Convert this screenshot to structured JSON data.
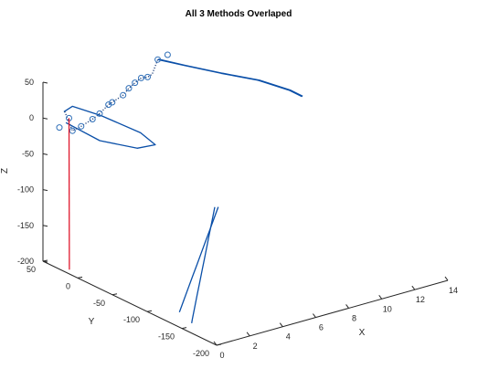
{
  "chart_data": {
    "type": "line",
    "projection": "3d",
    "title": "All 3 Methods Overlaped",
    "xlabel": "X",
    "ylabel": "Y",
    "zlabel": "Z",
    "xlim": [
      0,
      14
    ],
    "ylim": [
      -200,
      50
    ],
    "zlim": [
      -200,
      50
    ],
    "x_ticks": [
      "0",
      "2",
      "4",
      "6",
      "8",
      "10",
      "12",
      "14"
    ],
    "y_ticks": [
      "50",
      "0",
      "-50",
      "-100",
      "-150",
      "-200"
    ],
    "z_ticks": [
      "50",
      "0",
      "-50",
      "-100",
      "-150",
      "-200"
    ],
    "grid": false,
    "colors": {
      "trajectory": "#0a4fa8",
      "dotted": "#1f3f7a",
      "markers": "#2f6fb8",
      "vertical": "#e0182d"
    },
    "series": [
      {
        "style": "solid",
        "points": [
          [
            0.1,
            -200.0,
            -7.55
          ],
          [
            0.96,
            -173.33,
            -41.96
          ],
          [
            1.82,
            -146.67,
            -76.37
          ],
          [
            2.68,
            -120.0,
            -110.78
          ],
          [
            3.54,
            -93.33,
            -145.19
          ],
          [
            4.4,
            -66.67,
            -179.6
          ],
          [
            5.26,
            -40.0,
            -214.01
          ],
          [
            6.12,
            -13.33,
            -248.42
          ],
          [
            6.98,
            13.33,
            -282.83
          ],
          [
            7.84,
            40.0,
            -317.24
          ]
        ]
      },
      {
        "style": "solid",
        "points": [
          [
            0.1,
            -195.0,
            -10.0
          ],
          [
            1.0,
            -170.0,
            -45.0
          ],
          [
            1.9,
            -145.0,
            -80.0
          ],
          [
            2.8,
            -120.0,
            -115.0
          ],
          [
            3.7,
            -95.0,
            -150.0
          ],
          [
            4.6,
            -70.0,
            -185.0
          ],
          [
            5.5,
            -45.0,
            -220.0
          ],
          [
            6.4,
            -20.0,
            -255.0
          ],
          [
            7.3,
            5.0,
            -290.0
          ],
          [
            8.2,
            30.0,
            -325.0
          ],
          [
            8.5,
            38.0,
            -336.0
          ]
        ]
      },
      {
        "style": "solid",
        "points": [
          [
            0.0,
            17.0,
            9.0
          ],
          [
            0.5,
            -20.0,
            -2.0
          ],
          [
            1.5,
            -50.0,
            -5.0
          ],
          [
            2.3,
            -57.0,
            -2.0
          ],
          [
            2.0,
            -43.0,
            10.0
          ],
          [
            1.0,
            -10.0,
            25.0
          ],
          [
            0.35,
            16.0,
            30.0
          ],
          [
            0.05,
            21.0,
            22.0
          ]
        ]
      },
      {
        "style": "solid",
        "points": [
          [
            7.5,
            63.0,
            27.0
          ],
          [
            8.6,
            52.0,
            17.0
          ],
          [
            10.2,
            36.0,
            3.0
          ],
          [
            11.8,
            21.0,
            -10.0
          ],
          [
            13.0,
            5.0,
            -24.0
          ],
          [
            13.5,
            -2.0,
            -33.0
          ]
        ]
      },
      {
        "style": "solid",
        "points": [
          [
            7.5,
            62.0,
            28.0
          ],
          [
            8.6,
            50.0,
            18.0
          ],
          [
            10.2,
            34.0,
            4.0
          ],
          [
            11.8,
            19.0,
            -9.0
          ],
          [
            13.0,
            3.0,
            -23.0
          ],
          [
            13.5,
            -3.0,
            -32.0
          ]
        ]
      },
      {
        "style": "dotted",
        "points": [
          [
            0.1,
            21.0,
            22.0
          ],
          [
            0.8,
            26.5,
            -12.0
          ],
          [
            1.6,
            33.0,
            -14.0
          ],
          [
            2.2,
            31.0,
            -7.0
          ],
          [
            2.8,
            35.0,
            -5.0
          ],
          [
            3.4,
            36.5,
            3.0
          ],
          [
            3.9,
            43.0,
            0.0
          ],
          [
            4.6,
            44.0,
            5.0
          ],
          [
            5.2,
            50.0,
            8.0
          ],
          [
            5.7,
            53.0,
            11.0
          ],
          [
            6.2,
            56.0,
            13.0
          ],
          [
            6.8,
            61.0,
            8.0
          ],
          [
            7.2,
            64.0,
            8.0
          ],
          [
            7.5,
            63.0,
            27.0
          ]
        ]
      },
      {
        "style": "markers",
        "points": [
          [
            -0.33,
            18.5,
            3.6
          ],
          [
            0.36,
            21.0,
            11.0
          ],
          [
            0.8,
            26.5,
            -12.0
          ],
          [
            1.6,
            33.0,
            -14.0
          ],
          [
            2.2,
            31.0,
            -7.0
          ],
          [
            2.8,
            35.0,
            -5.0
          ],
          [
            3.4,
            36.5,
            3.0
          ],
          [
            3.9,
            43.0,
            0.0
          ],
          [
            4.6,
            44.0,
            5.0
          ],
          [
            5.2,
            50.0,
            8.0
          ],
          [
            5.7,
            53.0,
            11.0
          ],
          [
            6.2,
            56.0,
            13.0
          ],
          [
            6.8,
            61.0,
            8.0
          ],
          [
            7.5,
            63.0,
            27.0
          ],
          [
            8.2,
            65.5,
            28.0
          ]
        ]
      },
      {
        "style": "vertical",
        "points": [
          [
            0.36,
            21.0,
            11.0
          ],
          [
            0.34,
            20.0,
            -200.0
          ]
        ]
      }
    ]
  }
}
